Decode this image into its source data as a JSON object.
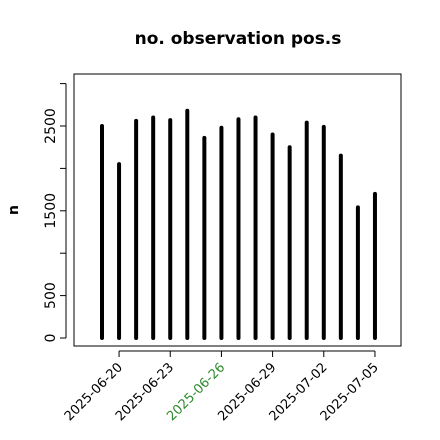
{
  "chart_data": {
    "type": "bar",
    "title": "no. observation pos.s",
    "xlabel": "",
    "ylabel": "n",
    "ylim": [
      0,
      3000
    ],
    "yticks": [
      0,
      500,
      1500,
      2500
    ],
    "grid": false,
    "x": [
      "2025-06-19",
      "2025-06-20",
      "2025-06-21",
      "2025-06-22",
      "2025-06-23",
      "2025-06-24",
      "2025-06-25",
      "2025-06-26",
      "2025-06-27",
      "2025-06-28",
      "2025-06-29",
      "2025-06-30",
      "2025-07-01",
      "2025-07-02",
      "2025-07-03",
      "2025-07-04",
      "2025-07-05"
    ],
    "values": [
      2500,
      2050,
      2560,
      2600,
      2570,
      2680,
      2360,
      2480,
      2580,
      2600,
      2400,
      2250,
      2540,
      2490,
      2150,
      1540,
      1700
    ],
    "xtick_labels": [
      {
        "label": "2025-06-20",
        "index": 1,
        "color": "#000000"
      },
      {
        "label": "2025-06-23",
        "index": 4,
        "color": "#000000"
      },
      {
        "label": "2025-06-26",
        "index": 7,
        "color": "#2e8b2e"
      },
      {
        "label": "2025-06-29",
        "index": 10,
        "color": "#000000"
      },
      {
        "label": "2025-07-02",
        "index": 13,
        "color": "#000000"
      },
      {
        "label": "2025-07-05",
        "index": 16,
        "color": "#000000"
      }
    ],
    "bar_color": "#000000"
  }
}
